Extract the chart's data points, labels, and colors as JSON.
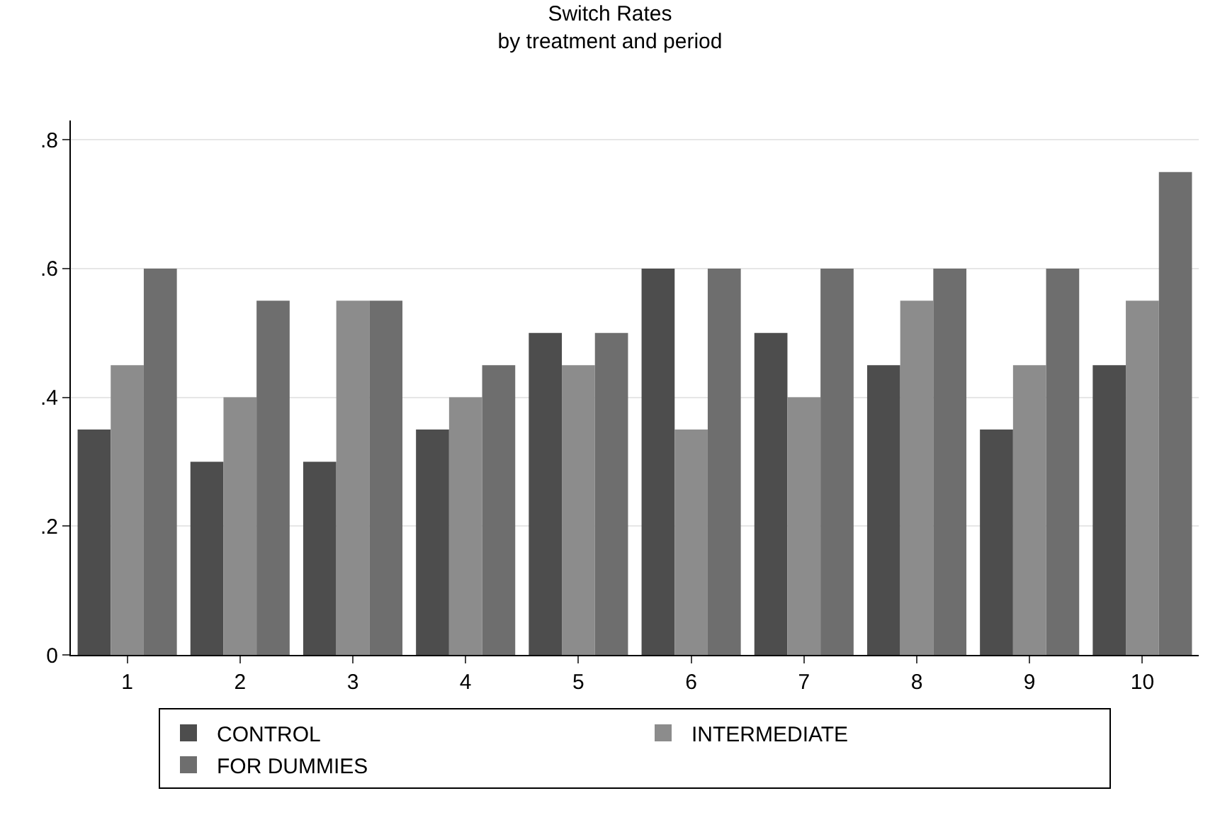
{
  "chart_data": {
    "type": "bar",
    "title": "Switch Rates",
    "subtitle": "by treatment and period",
    "categories": [
      "1",
      "2",
      "3",
      "4",
      "5",
      "6",
      "7",
      "8",
      "9",
      "10"
    ],
    "series": [
      {
        "name": "CONTROL",
        "color": "#4d4d4d",
        "values": [
          0.35,
          0.3,
          0.3,
          0.35,
          0.5,
          0.6,
          0.5,
          0.45,
          0.35,
          0.45
        ]
      },
      {
        "name": "INTERMEDIATE",
        "color": "#8c8c8c",
        "values": [
          0.45,
          0.4,
          0.55,
          0.4,
          0.45,
          0.35,
          0.4,
          0.55,
          0.45,
          0.55
        ]
      },
      {
        "name": "FOR DUMMIES",
        "color": "#6e6e6e",
        "values": [
          0.6,
          0.55,
          0.55,
          0.45,
          0.5,
          0.6,
          0.6,
          0.6,
          0.6,
          0.75
        ]
      }
    ],
    "ylim": [
      0,
      0.83
    ],
    "yticks": [
      0,
      {
        "value": 0.2,
        "label": ".2"
      },
      {
        "value": 0.4,
        "label": ".4"
      },
      {
        "value": 0.6,
        "label": ".6"
      },
      {
        "value": 0.8,
        "label": ".8"
      }
    ],
    "grid": "y",
    "legend": "bottom"
  }
}
